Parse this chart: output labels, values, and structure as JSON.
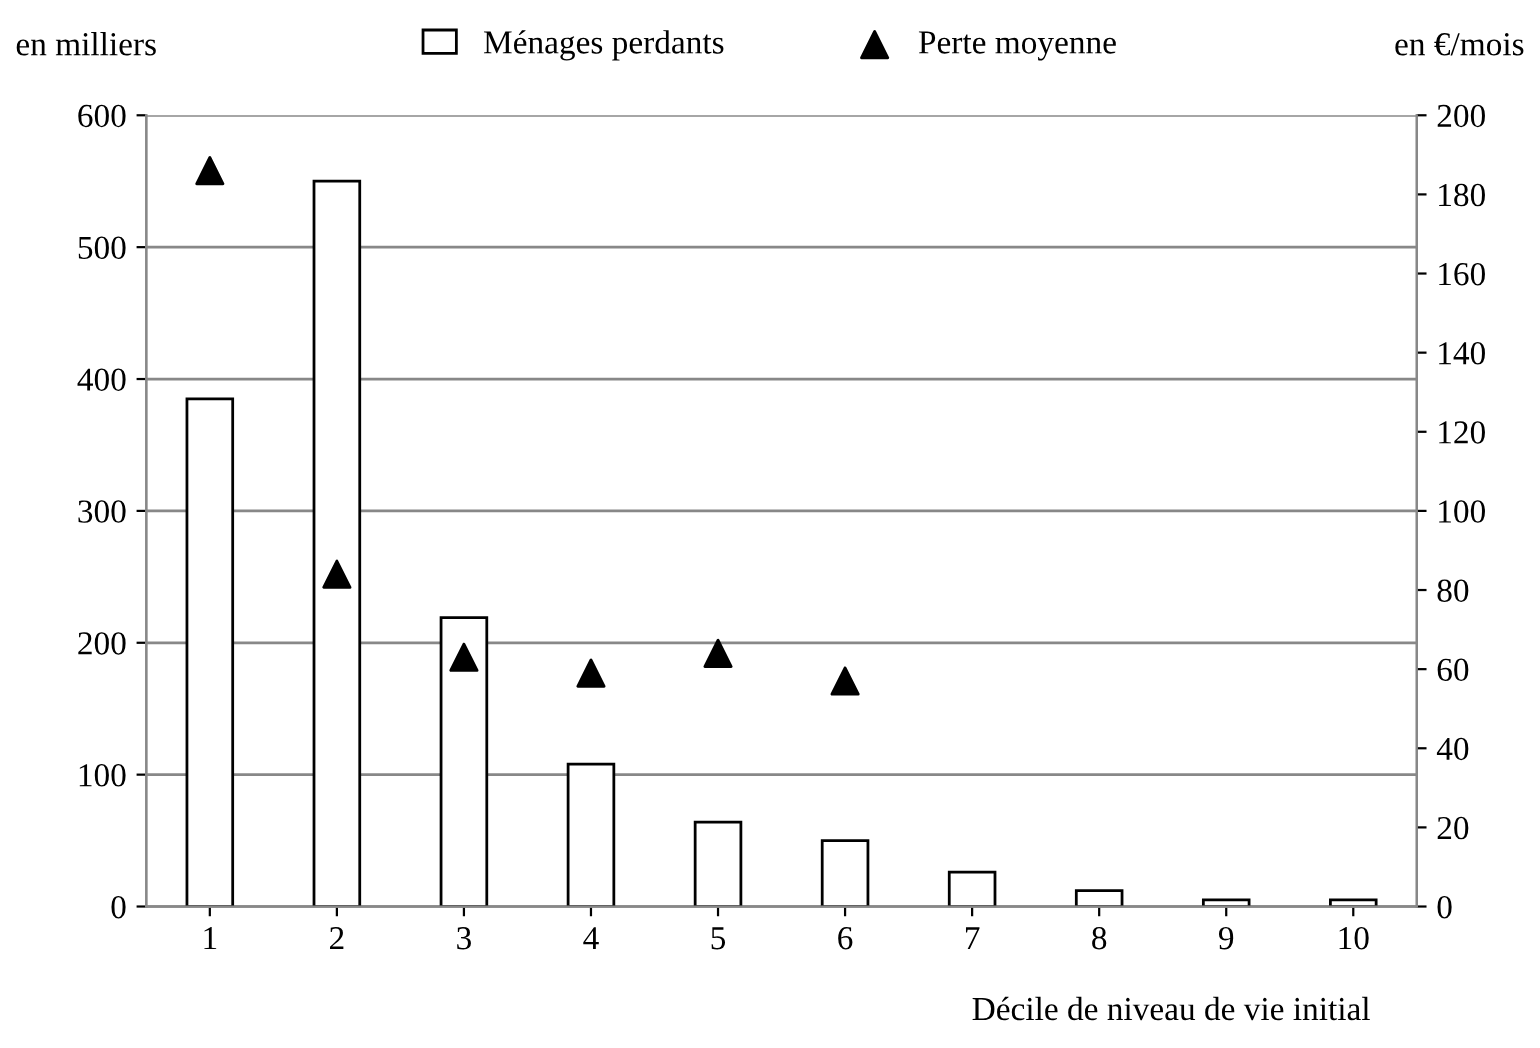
{
  "chart_data": {
    "type": "bar",
    "xlabel": "Décile de niveau de vie initial",
    "ylabel": "en milliers",
    "y2label": "en €/mois",
    "categories": [
      "1",
      "2",
      "3",
      "4",
      "5",
      "6",
      "7",
      "8",
      "9",
      "10"
    ],
    "series": [
      {
        "name": "Ménages perdants",
        "color": "#ffffff",
        "values": [
          385,
          550,
          219,
          108,
          64,
          50,
          26,
          12,
          5,
          5
        ]
      },
      {
        "name": "Perte moyenne",
        "type": "scatter",
        "axis": "y2",
        "color": "#000000",
        "marker": "triangle",
        "values": [
          186,
          84,
          63,
          59,
          64,
          57,
          null,
          null,
          null,
          null
        ]
      }
    ],
    "ylim": [
      0,
      600
    ],
    "yticks": [
      0,
      100,
      200,
      300,
      400,
      500,
      600
    ],
    "y2lim": [
      0,
      200
    ],
    "y2ticks": [
      0,
      20,
      40,
      60,
      80,
      100,
      120,
      140,
      160,
      180,
      200
    ],
    "grid": "y",
    "legend": "top"
  }
}
